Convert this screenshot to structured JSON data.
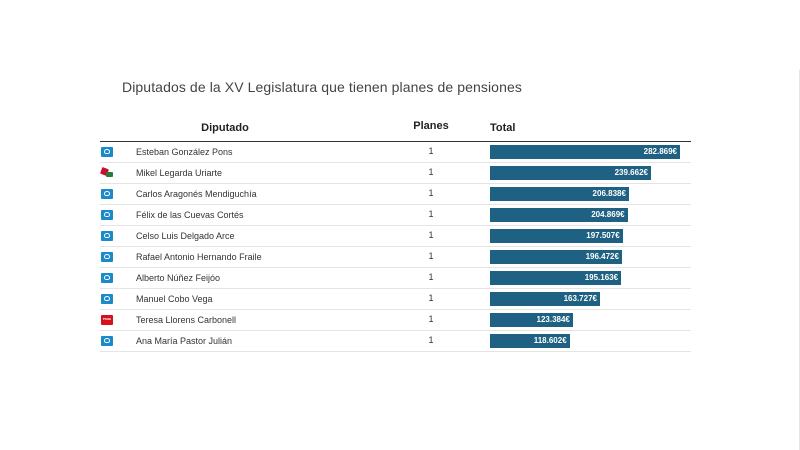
{
  "title": "Diputados de la XV Legislatura que tienen planes de pensiones",
  "columns": {
    "diputado": "Diputado",
    "planes": "Planes",
    "total": "Total"
  },
  "colors": {
    "bar": "#1e6182",
    "pp": "#1a8ac8",
    "psoe": "#d6111b"
  },
  "chart_data": {
    "type": "bar",
    "title": "Diputados de la XV Legislatura que tienen planes de pensiones",
    "orientation": "horizontal",
    "max": 282869,
    "rows": [
      {
        "party": "pp",
        "name": "Esteban González Pons",
        "planes": "1",
        "total": 282869,
        "label": "282.869€"
      },
      {
        "party": "pnv",
        "name": "Mikel Legarda Uriarte",
        "planes": "1",
        "total": 239662,
        "label": "239.662€"
      },
      {
        "party": "pp",
        "name": "Carlos Aragonés Mendiguchía",
        "planes": "1",
        "total": 206838,
        "label": "206.838€"
      },
      {
        "party": "pp",
        "name": "Félix de las Cuevas Cortés",
        "planes": "1",
        "total": 204869,
        "label": "204.869€"
      },
      {
        "party": "pp",
        "name": "Celso Luis Delgado Arce",
        "planes": "1",
        "total": 197507,
        "label": "197.507€"
      },
      {
        "party": "pp",
        "name": "Rafael Antonio Hernando Fraile",
        "planes": "1",
        "total": 196472,
        "label": "196.472€"
      },
      {
        "party": "pp",
        "name": "Alberto Núñez Feijóo",
        "planes": "1",
        "total": 195163,
        "label": "195.163€"
      },
      {
        "party": "pp",
        "name": "Manuel Cobo Vega",
        "planes": "1",
        "total": 163727,
        "label": "163.727€"
      },
      {
        "party": "psoe",
        "name": "Teresa Llorens Carbonell",
        "planes": "1",
        "total": 123384,
        "label": "123.384€"
      },
      {
        "party": "pp",
        "name": "Ana María Pastor Julián",
        "planes": "1",
        "total": 118602,
        "label": "118.602€"
      }
    ]
  }
}
